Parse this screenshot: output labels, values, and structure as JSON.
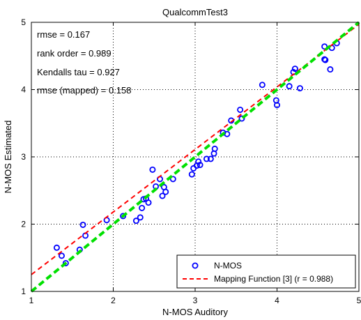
{
  "chart_data": {
    "type": "scatter",
    "title": "QualcommTest3",
    "xlabel": "N-MOS Auditory",
    "ylabel": "N-MOS Estimated",
    "xlim": [
      1,
      5
    ],
    "ylim": [
      1,
      5
    ],
    "xticks": [
      1,
      2,
      3,
      4,
      5
    ],
    "yticks": [
      1,
      2,
      3,
      4,
      5
    ],
    "grid": true,
    "legend_position": "bottom-right",
    "stats": [
      "rmse = 0.167",
      "rank order = 0.989",
      "Kendalls tau = 0.927",
      "rmse (mapped) = 0.158"
    ],
    "series": [
      {
        "name": "N-MOS",
        "kind": "markers",
        "color": "#0000ff",
        "points": [
          [
            1.31,
            1.65
          ],
          [
            1.37,
            1.53
          ],
          [
            1.42,
            1.42
          ],
          [
            1.59,
            1.62
          ],
          [
            1.63,
            1.99
          ],
          [
            1.66,
            1.83
          ],
          [
            1.92,
            2.06
          ],
          [
            2.12,
            2.12
          ],
          [
            2.28,
            2.05
          ],
          [
            2.33,
            2.1
          ],
          [
            2.35,
            2.24
          ],
          [
            2.37,
            2.37
          ],
          [
            2.4,
            2.38
          ],
          [
            2.43,
            2.32
          ],
          [
            2.48,
            2.81
          ],
          [
            2.52,
            2.56
          ],
          [
            2.57,
            2.67
          ],
          [
            2.6,
            2.42
          ],
          [
            2.62,
            2.55
          ],
          [
            2.64,
            2.48
          ],
          [
            2.73,
            2.67
          ],
          [
            2.96,
            2.74
          ],
          [
            2.98,
            2.83
          ],
          [
            3.02,
            2.87
          ],
          [
            3.04,
            2.93
          ],
          [
            3.06,
            2.88
          ],
          [
            3.14,
            2.97
          ],
          [
            3.19,
            2.97
          ],
          [
            3.23,
            3.05
          ],
          [
            3.24,
            3.12
          ],
          [
            3.34,
            3.36
          ],
          [
            3.39,
            3.34
          ],
          [
            3.44,
            3.54
          ],
          [
            3.55,
            3.7
          ],
          [
            3.57,
            3.57
          ],
          [
            3.82,
            4.07
          ],
          [
            3.99,
            3.84
          ],
          [
            4.0,
            3.77
          ],
          [
            4.15,
            4.05
          ],
          [
            4.2,
            4.26
          ],
          [
            4.22,
            4.31
          ],
          [
            4.28,
            4.02
          ],
          [
            4.58,
            4.64
          ],
          [
            4.58,
            4.45
          ],
          [
            4.59,
            4.44
          ],
          [
            4.65,
            4.3
          ],
          [
            4.67,
            4.62
          ],
          [
            4.73,
            4.69
          ]
        ]
      },
      {
        "name": "Mapping Function [3] (r = 0.988)",
        "kind": "dashed-line",
        "color": "#ff0000",
        "points": [
          [
            1,
            1.25
          ],
          [
            5,
            4.97
          ]
        ]
      },
      {
        "name": "",
        "kind": "dashed-line",
        "color": "#00e000",
        "points": [
          [
            1,
            1
          ],
          [
            5,
            5
          ]
        ]
      }
    ]
  }
}
